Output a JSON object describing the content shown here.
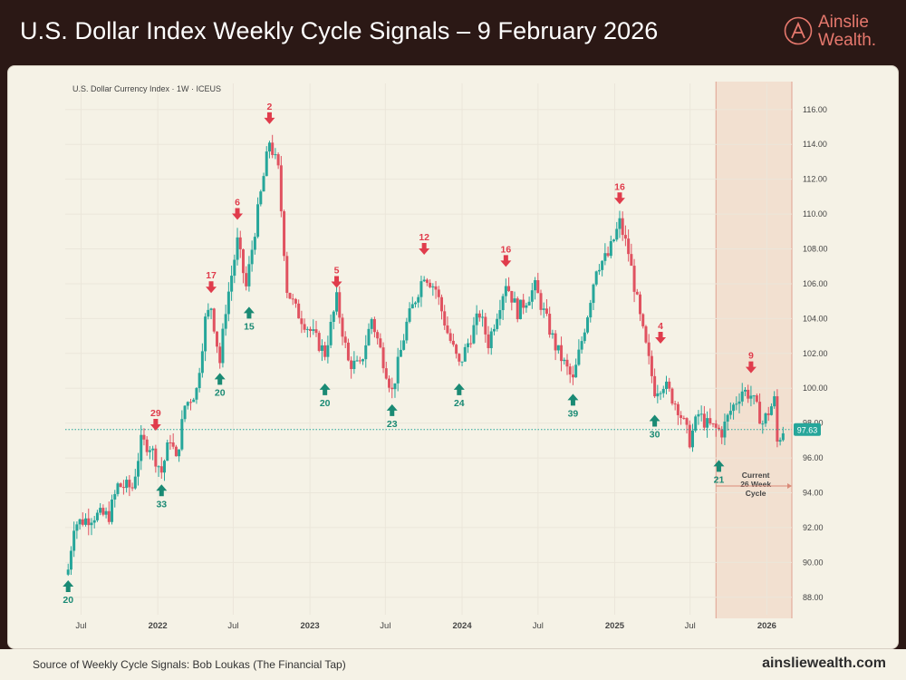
{
  "header": {
    "title": "U.S. Dollar Index Weekly Cycle Signals – 9 February 2026",
    "logo_line1": "Ainslie",
    "logo_line2": "Wealth."
  },
  "footer": {
    "source": "Source of Weekly Cycle Signals: Bob Loukas (The Financial Tap)",
    "site": "ainsliewealth.com"
  },
  "chart_data": {
    "type": "candlestick",
    "title": "U.S. Dollar Currency Index · 1W · ICEUS",
    "ylim": [
      87,
      117.5
    ],
    "yticks": [
      "88.00",
      "90.00",
      "92.00",
      "94.00",
      "96.00",
      "98.00",
      "100.00",
      "102.00",
      "104.00",
      "106.00",
      "108.00",
      "110.00",
      "112.00",
      "114.00",
      "116.00"
    ],
    "xticks": [
      {
        "label": "Jul",
        "date": "2021-07-01",
        "bold": false
      },
      {
        "label": "2022",
        "date": "2022-01-01",
        "bold": true
      },
      {
        "label": "Jul",
        "date": "2022-07-01",
        "bold": false
      },
      {
        "label": "2023",
        "date": "2023-01-01",
        "bold": true
      },
      {
        "label": "Jul",
        "date": "2023-07-01",
        "bold": false
      },
      {
        "label": "2024",
        "date": "2024-01-01",
        "bold": true
      },
      {
        "label": "Jul",
        "date": "2024-07-01",
        "bold": false
      },
      {
        "label": "2025",
        "date": "2025-01-01",
        "bold": true
      },
      {
        "label": "Jul",
        "date": "2025-07-01",
        "bold": false
      },
      {
        "label": "2026",
        "date": "2026-01-01",
        "bold": true
      }
    ],
    "last_price": 97.63,
    "last_price_label": "97.63",
    "colors": {
      "up": "#26a69a",
      "down": "#e05260",
      "down_signal": "#e03c4c",
      "up_signal": "#1a8a74",
      "shade": "#f0d9c8"
    },
    "price_path": [
      [
        "2021-05-31",
        89.6
      ],
      [
        "2021-06-14",
        92.2
      ],
      [
        "2021-07-05",
        92.4
      ],
      [
        "2021-08-02",
        92.7
      ],
      [
        "2021-09-06",
        92.7
      ],
      [
        "2021-09-27",
        94.4
      ],
      [
        "2021-11-01",
        94.3
      ],
      [
        "2021-11-22",
        96.9
      ],
      [
        "2021-12-13",
        96.7
      ],
      [
        "2022-01-10",
        95.2
      ],
      [
        "2022-01-31",
        97.2
      ],
      [
        "2022-02-14",
        95.8
      ],
      [
        "2022-03-07",
        99.0
      ],
      [
        "2022-04-04",
        99.9
      ],
      [
        "2022-04-25",
        103.9
      ],
      [
        "2022-05-09",
        104.7
      ],
      [
        "2022-05-30",
        101.5
      ],
      [
        "2022-06-13",
        104.6
      ],
      [
        "2022-07-11",
        108.4
      ],
      [
        "2022-08-01",
        105.8
      ],
      [
        "2022-08-22",
        109.1
      ],
      [
        "2022-09-26",
        114.2
      ],
      [
        "2022-10-17",
        112.5
      ],
      [
        "2022-11-07",
        105.7
      ],
      [
        "2022-11-28",
        104.5
      ],
      [
        "2023-01-02",
        103.3
      ],
      [
        "2023-02-06",
        102.0
      ],
      [
        "2023-03-06",
        105.1
      ],
      [
        "2023-04-03",
        101.5
      ],
      [
        "2023-05-01",
        101.2
      ],
      [
        "2023-05-29",
        104.0
      ],
      [
        "2023-07-17",
        99.8
      ],
      [
        "2023-08-21",
        103.7
      ],
      [
        "2023-10-02",
        106.6
      ],
      [
        "2023-10-30",
        105.7
      ],
      [
        "2023-11-27",
        103.2
      ],
      [
        "2023-12-25",
        101.3
      ],
      [
        "2024-02-12",
        104.3
      ],
      [
        "2024-03-04",
        102.6
      ],
      [
        "2024-04-15",
        106.1
      ],
      [
        "2024-05-13",
        104.4
      ],
      [
        "2024-06-24",
        105.8
      ],
      [
        "2024-08-12",
        102.4
      ],
      [
        "2024-09-23",
        100.4
      ],
      [
        "2024-10-28",
        104.3
      ],
      [
        "2024-11-18",
        107.0
      ],
      [
        "2024-12-16",
        107.6
      ],
      [
        "2025-01-13",
        109.5
      ],
      [
        "2025-02-03",
        107.8
      ],
      [
        "2025-03-03",
        104.0
      ],
      [
        "2025-04-07",
        99.9
      ],
      [
        "2025-04-28",
        100.3
      ],
      [
        "2025-06-02",
        98.9
      ],
      [
        "2025-06-30",
        97.0
      ],
      [
        "2025-07-21",
        98.5
      ],
      [
        "2025-08-11",
        97.9
      ],
      [
        "2025-09-15",
        97.5
      ],
      [
        "2025-10-06",
        98.7
      ],
      [
        "2025-11-03",
        99.9
      ],
      [
        "2025-11-24",
        99.6
      ],
      [
        "2025-12-22",
        98.0
      ],
      [
        "2026-01-19",
        99.3
      ],
      [
        "2026-01-26",
        96.9
      ],
      [
        "2026-02-09",
        97.63
      ]
    ],
    "signals": [
      {
        "label": "20",
        "date": "2021-05-31",
        "price": 89.5,
        "dir": "up"
      },
      {
        "label": "33",
        "date": "2022-01-10",
        "price": 95.0,
        "dir": "up"
      },
      {
        "label": "29",
        "date": "2021-12-27",
        "price": 97.2,
        "dir": "down"
      },
      {
        "label": "20",
        "date": "2022-05-30",
        "price": 101.4,
        "dir": "up"
      },
      {
        "label": "17",
        "date": "2022-05-09",
        "price": 105.1,
        "dir": "down"
      },
      {
        "label": "6",
        "date": "2022-07-11",
        "price": 109.3,
        "dir": "down"
      },
      {
        "label": "15",
        "date": "2022-08-08",
        "price": 105.2,
        "dir": "up"
      },
      {
        "label": "2",
        "date": "2022-09-26",
        "price": 114.8,
        "dir": "down"
      },
      {
        "label": "5",
        "date": "2023-03-06",
        "price": 105.4,
        "dir": "down"
      },
      {
        "label": "20",
        "date": "2023-02-06",
        "price": 100.8,
        "dir": "up"
      },
      {
        "label": "23",
        "date": "2023-07-17",
        "price": 99.6,
        "dir": "up"
      },
      {
        "label": "12",
        "date": "2023-10-02",
        "price": 107.3,
        "dir": "down"
      },
      {
        "label": "24",
        "date": "2023-12-25",
        "price": 100.8,
        "dir": "up"
      },
      {
        "label": "16",
        "date": "2024-04-15",
        "price": 106.6,
        "dir": "down"
      },
      {
        "label": "39",
        "date": "2024-09-23",
        "price": 100.2,
        "dir": "up"
      },
      {
        "label": "16",
        "date": "2025-01-13",
        "price": 110.2,
        "dir": "down"
      },
      {
        "label": "4",
        "date": "2025-04-21",
        "price": 102.2,
        "dir": "down"
      },
      {
        "label": "30",
        "date": "2025-04-07",
        "price": 99.0,
        "dir": "up"
      },
      {
        "label": "21",
        "date": "2025-09-08",
        "price": 96.4,
        "dir": "up"
      },
      {
        "label": "9",
        "date": "2025-11-24",
        "price": 100.5,
        "dir": "down"
      }
    ],
    "cycle_region": {
      "start": "2025-09-01",
      "end": "2026-03-02",
      "label": [
        "Current",
        "26 Week",
        "Cycle"
      ]
    }
  }
}
